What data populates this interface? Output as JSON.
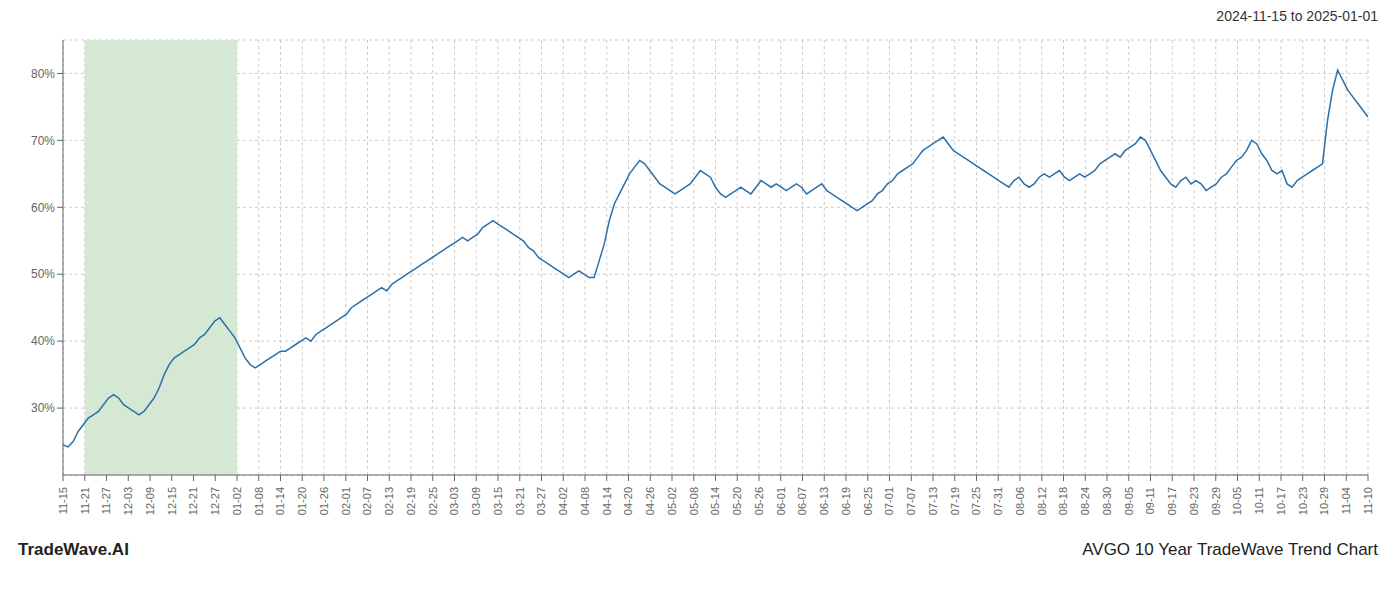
{
  "chart_data": {
    "type": "line",
    "title": "AVGO 10 Year TradeWave Trend Chart",
    "subtitle": "2024-11-15 to 2025-01-01",
    "annotations": [
      "TradeWave.AI"
    ],
    "color": "#2d6fa8",
    "grid": true,
    "highlight": {
      "x": [
        4.3,
        34.4
      ],
      "color": "#d4e8d4"
    },
    "xlim": [
      0,
      258
    ],
    "xticks": [
      {
        "value": 0,
        "label": "11-15"
      },
      {
        "value": 4.3,
        "label": "11-21"
      },
      {
        "value": 8.6,
        "label": "11-27"
      },
      {
        "value": 12.9,
        "label": "12-03"
      },
      {
        "value": 17.2,
        "label": "12-09"
      },
      {
        "value": 21.5,
        "label": "12-15"
      },
      {
        "value": 25.8,
        "label": "12-21"
      },
      {
        "value": 30.1,
        "label": "12-27"
      },
      {
        "value": 34.4,
        "label": "01-02"
      },
      {
        "value": 38.7,
        "label": "01-08"
      },
      {
        "value": 43,
        "label": "01-14"
      },
      {
        "value": 47.3,
        "label": "01-20"
      },
      {
        "value": 51.6,
        "label": "01-26"
      },
      {
        "value": 55.9,
        "label": "02-01"
      },
      {
        "value": 60.2,
        "label": "02-07"
      },
      {
        "value": 64.5,
        "label": "02-13"
      },
      {
        "value": 68.8,
        "label": "02-19"
      },
      {
        "value": 73.1,
        "label": "02-25"
      },
      {
        "value": 77.4,
        "label": "03-03"
      },
      {
        "value": 81.7,
        "label": "03-09"
      },
      {
        "value": 86,
        "label": "03-15"
      },
      {
        "value": 90.3,
        "label": "03-21"
      },
      {
        "value": 94.6,
        "label": "03-27"
      },
      {
        "value": 98.9,
        "label": "04-02"
      },
      {
        "value": 103.2,
        "label": "04-08"
      },
      {
        "value": 107.5,
        "label": "04-14"
      },
      {
        "value": 111.8,
        "label": "04-20"
      },
      {
        "value": 116.1,
        "label": "04-26"
      },
      {
        "value": 120.4,
        "label": "05-02"
      },
      {
        "value": 124.7,
        "label": "05-08"
      },
      {
        "value": 129,
        "label": "05-14"
      },
      {
        "value": 133.3,
        "label": "05-20"
      },
      {
        "value": 137.6,
        "label": "05-26"
      },
      {
        "value": 141.9,
        "label": "06-01"
      },
      {
        "value": 146.2,
        "label": "06-07"
      },
      {
        "value": 150.5,
        "label": "06-13"
      },
      {
        "value": 154.8,
        "label": "06-19"
      },
      {
        "value": 159.1,
        "label": "06-25"
      },
      {
        "value": 163.4,
        "label": "07-01"
      },
      {
        "value": 167.7,
        "label": "07-07"
      },
      {
        "value": 172,
        "label": "07-13"
      },
      {
        "value": 176.3,
        "label": "07-19"
      },
      {
        "value": 180.6,
        "label": "07-25"
      },
      {
        "value": 184.9,
        "label": "07-31"
      },
      {
        "value": 189.2,
        "label": "08-06"
      },
      {
        "value": 193.5,
        "label": "08-12"
      },
      {
        "value": 197.8,
        "label": "08-18"
      },
      {
        "value": 202.1,
        "label": "08-24"
      },
      {
        "value": 206.4,
        "label": "08-30"
      },
      {
        "value": 210.7,
        "label": "09-05"
      },
      {
        "value": 215,
        "label": "09-11"
      },
      {
        "value": 219.3,
        "label": "09-17"
      },
      {
        "value": 223.6,
        "label": "09-23"
      },
      {
        "value": 227.9,
        "label": "09-29"
      },
      {
        "value": 232.2,
        "label": "10-05"
      },
      {
        "value": 236.5,
        "label": "10-11"
      },
      {
        "value": 240.8,
        "label": "10-17"
      },
      {
        "value": 245.1,
        "label": "10-23"
      },
      {
        "value": 249.4,
        "label": "10-29"
      },
      {
        "value": 253.7,
        "label": "11-04"
      },
      {
        "value": 258,
        "label": "11-10"
      }
    ],
    "ylim": [
      20,
      85
    ],
    "yticks": [
      {
        "value": 30,
        "label": "30%"
      },
      {
        "value": 40,
        "label": "40%"
      },
      {
        "value": 50,
        "label": "50%"
      },
      {
        "value": 60,
        "label": "60%"
      },
      {
        "value": 70,
        "label": "70%"
      },
      {
        "value": 80,
        "label": "80%"
      }
    ],
    "x": [
      0,
      1,
      2,
      3,
      4,
      5,
      6,
      7,
      8,
      9,
      10,
      11,
      12,
      13,
      14,
      15,
      16,
      17,
      18,
      19,
      20,
      21,
      22,
      23,
      24,
      25,
      26,
      27,
      28,
      29,
      30,
      31,
      32,
      33,
      34,
      35,
      36,
      37,
      38,
      39,
      40,
      41,
      42,
      43,
      44,
      45,
      46,
      47,
      48,
      49,
      50,
      51,
      52,
      53,
      54,
      55,
      56,
      57,
      58,
      59,
      60,
      61,
      62,
      63,
      64,
      65,
      66,
      67,
      68,
      69,
      70,
      71,
      72,
      73,
      74,
      75,
      76,
      77,
      78,
      79,
      80,
      81,
      82,
      83,
      84,
      85,
      86,
      87,
      88,
      89,
      90,
      91,
      92,
      93,
      94,
      95,
      96,
      97,
      98,
      99,
      100,
      101,
      102,
      103,
      104,
      105,
      106,
      107,
      108,
      109,
      110,
      111,
      112,
      113,
      114,
      115,
      116,
      117,
      118,
      119,
      120,
      121,
      122,
      123,
      124,
      125,
      126,
      127,
      128,
      129,
      130,
      131,
      132,
      133,
      134,
      135,
      136,
      137,
      138,
      139,
      140,
      141,
      142,
      143,
      144,
      145,
      146,
      147,
      148,
      149,
      150,
      151,
      152,
      153,
      154,
      155,
      156,
      157,
      158,
      159,
      160,
      161,
      162,
      163,
      164,
      165,
      166,
      167,
      168,
      169,
      170,
      171,
      172,
      173,
      174,
      175,
      176,
      177,
      178,
      179,
      180,
      181,
      182,
      183,
      184,
      185,
      186,
      187,
      188,
      189,
      190,
      191,
      192,
      193,
      194,
      195,
      196,
      197,
      198,
      199,
      200,
      201,
      202,
      203,
      204,
      205,
      206,
      207,
      208,
      209,
      210,
      211,
      212,
      213,
      214,
      215,
      216,
      217,
      218,
      219,
      220,
      221,
      222,
      223,
      224,
      225,
      226,
      227,
      228,
      229,
      230,
      231,
      232,
      233,
      234,
      235,
      236,
      237,
      238,
      239,
      240,
      241,
      242,
      243,
      244,
      245,
      246,
      247,
      248,
      249,
      250,
      251,
      252,
      253,
      254,
      255,
      256,
      257,
      258
    ],
    "values": [
      24.5,
      24.2,
      25.0,
      26.5,
      27.5,
      28.5,
      29.0,
      29.5,
      30.5,
      31.5,
      32.0,
      31.5,
      30.5,
      30.0,
      29.5,
      29.0,
      29.5,
      30.5,
      31.5,
      33.0,
      35.0,
      36.5,
      37.5,
      38.0,
      38.5,
      39.0,
      39.5,
      40.5,
      41.0,
      42.0,
      43.0,
      43.5,
      42.5,
      41.5,
      40.5,
      39.0,
      37.5,
      36.5,
      36.0,
      36.5,
      37.0,
      37.5,
      38.0,
      38.5,
      38.5,
      39.0,
      39.5,
      40.0,
      40.5,
      40.0,
      41.0,
      41.5,
      42.0,
      42.5,
      43.0,
      43.5,
      44.0,
      45.0,
      45.5,
      46.0,
      46.5,
      47.0,
      47.5,
      48.0,
      47.5,
      48.5,
      49.0,
      49.5,
      50.0,
      50.5,
      51.0,
      51.5,
      52.0,
      52.5,
      53.0,
      53.5,
      54.0,
      54.5,
      55.0,
      55.5,
      55.0,
      55.5,
      56.0,
      57.0,
      57.5,
      58.0,
      57.5,
      57.0,
      56.5,
      56.0,
      55.5,
      55.0,
      54.0,
      53.5,
      52.5,
      52.0,
      51.5,
      51.0,
      50.5,
      50.0,
      49.5,
      50.0,
      50.5,
      50.0,
      49.5,
      49.5,
      52.0,
      54.5,
      58.0,
      60.5,
      62.0,
      63.5,
      65.0,
      66.0,
      67.0,
      66.5,
      65.5,
      64.5,
      63.5,
      63.0,
      62.5,
      62.0,
      62.5,
      63.0,
      63.5,
      64.5,
      65.5,
      65.0,
      64.5,
      63.0,
      62.0,
      61.5,
      62.0,
      62.5,
      63.0,
      62.5,
      62.0,
      63.0,
      64.0,
      63.5,
      63.0,
      63.5,
      63.0,
      62.5,
      63.0,
      63.5,
      63.0,
      62.0,
      62.5,
      63.0,
      63.5,
      62.5,
      62.0,
      61.5,
      61.0,
      60.5,
      60.0,
      59.5,
      60.0,
      60.5,
      61.0,
      62.0,
      62.5,
      63.5,
      64.0,
      65.0,
      65.5,
      66.0,
      66.5,
      67.5,
      68.5,
      69.0,
      69.5,
      70.0,
      70.5,
      69.5,
      68.5,
      68.0,
      67.5,
      67.0,
      66.5,
      66.0,
      65.5,
      65.0,
      64.5,
      64.0,
      63.5,
      63.0,
      64.0,
      64.5,
      63.5,
      63.0,
      63.5,
      64.5,
      65.0,
      64.5,
      65.0,
      65.5,
      64.5,
      64.0,
      64.5,
      65.0,
      64.5,
      65.0,
      65.5,
      66.5,
      67.0,
      67.5,
      68.0,
      67.5,
      68.5,
      69.0,
      69.5,
      70.5,
      70.0,
      68.5,
      67.0,
      65.5,
      64.5,
      63.5,
      63.0,
      64.0,
      64.5,
      63.5,
      64.0,
      63.5,
      62.5,
      63.0,
      63.5,
      64.5,
      65.0,
      66.0,
      67.0,
      67.5,
      68.5,
      70.0,
      69.5,
      68.0,
      67.0,
      65.5,
      65.0,
      65.5,
      63.5,
      63.0,
      64.0,
      64.5,
      65.0,
      65.5,
      66.0,
      66.5,
      73.0,
      77.5,
      80.5,
      79.0,
      77.5,
      76.5,
      75.5,
      74.5,
      73.5
    ]
  }
}
